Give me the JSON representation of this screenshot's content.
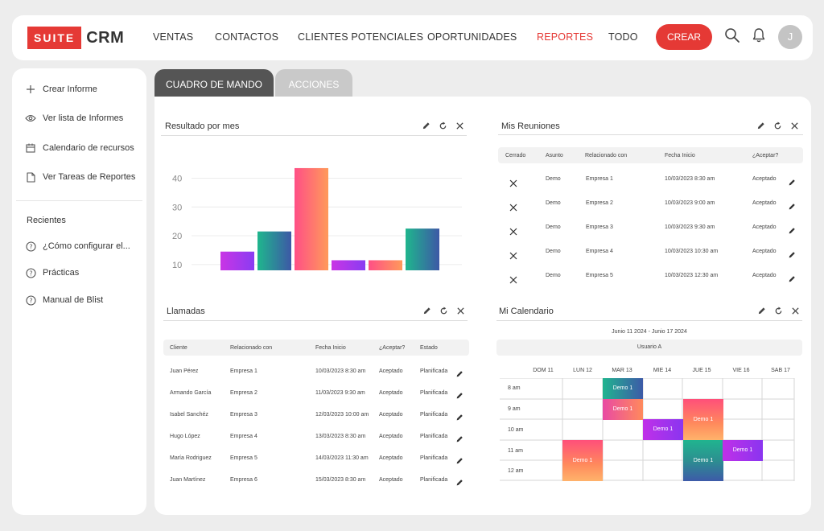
{
  "app": {
    "logo_suite": "SUITE",
    "logo_crm": "CRM"
  },
  "nav": {
    "items": [
      "VENTAS",
      "CONTACTOS",
      "CLIENTES POTENCIALES",
      "OPORTUNIDADES",
      "REPORTES",
      "TODO"
    ],
    "active": "REPORTES",
    "create_label": "CREAR",
    "avatar_initial": "J"
  },
  "sidebar": {
    "actions": [
      {
        "label": "Crear Informe",
        "icon": "plus-icon"
      },
      {
        "label": "Ver lista de Informes",
        "icon": "eye-icon"
      },
      {
        "label": "Calendario de recursos",
        "icon": "calendar-icon"
      },
      {
        "label": "Ver Tareas de Reportes",
        "icon": "document-icon"
      }
    ],
    "recent_heading": "Recientes",
    "recent": [
      {
        "label": "¿Cómo configurar el...",
        "icon": "help-icon"
      },
      {
        "label": "Prácticas",
        "icon": "help-icon"
      },
      {
        "label": "Manual de Blist",
        "icon": "help-icon"
      }
    ]
  },
  "tabs": {
    "active": "CUADRO DE MANDO",
    "inactive": "ACCIONES"
  },
  "panels": {
    "chart_title": "Resultado por mes",
    "meetings_title": "Mis Reuniones",
    "calls_title": "Llamadas",
    "calendar_title": "Mi Calendario"
  },
  "chart_data": {
    "type": "bar",
    "title": "Resultado por mes",
    "categories": [
      "",
      "",
      "",
      "",
      "",
      ""
    ],
    "values": [
      14.5,
      21.5,
      43.5,
      11.5,
      11.5,
      22.5
    ],
    "yticks": [
      10,
      20,
      30,
      40
    ],
    "ylim": [
      8,
      46
    ],
    "colors": [
      "purple",
      "green",
      "orange",
      "purple",
      "orange",
      "green"
    ],
    "grid": true
  },
  "meetings": {
    "headers": [
      "Cerrado",
      "Asunto",
      "Relacionado con",
      "Fecha Inicio",
      "¿Aceptar?"
    ],
    "rows": [
      [
        "Demo",
        "Empresa 1",
        "10/03/2023 8:30 am",
        "Aceptado"
      ],
      [
        "Demo",
        "Empresa 2",
        "10/03/2023 9:00 am",
        "Aceptado"
      ],
      [
        "Demo",
        "Empresa 3",
        "10/03/2023 9:30 am",
        "Aceptado"
      ],
      [
        "Demo",
        "Empresa 4",
        "10/03/2023 10:30 am",
        "Aceptado"
      ],
      [
        "Demo",
        "Empresa 5",
        "10/03/2023 12:30 am",
        "Aceptado"
      ]
    ]
  },
  "calls": {
    "headers": [
      "Cliente",
      "Relacionado con",
      "Fecha Inicio",
      "¿Aceptar?",
      "Estado"
    ],
    "rows": [
      [
        "Juan Pérez",
        "Empresa 1",
        "10/03/2023 8:30 am",
        "Aceptado",
        "Planificada"
      ],
      [
        "Armando García",
        "Empresa 2",
        "11/03/2023 9:30 am",
        "Aceptado",
        "Planificada"
      ],
      [
        "Isabel Sanchéz",
        "Empresa 3",
        "12/03/2023 10:00 am",
        "Aceptado",
        "Planificada"
      ],
      [
        "Hugo López",
        "Empresa 4",
        "13/03/2023 8:30 am",
        "Aceptado",
        "Planificada"
      ],
      [
        "María Rodriguez",
        "Empresa 5",
        "14/03/2023 11:30 am",
        "Aceptado",
        "Planificada"
      ],
      [
        "Juan Martínez",
        "Empresa 6",
        "15/03/2023 8:30 am",
        "Aceptado",
        "Planificada"
      ]
    ]
  },
  "calendar": {
    "range": "Junio 11 2024 - Junio 17 2024",
    "user": "Usuario A",
    "days": [
      "DOM 11",
      "LUN 12",
      "MAR 13",
      "MIE 14",
      "JUE 15",
      "VIE 16",
      "SAB 17"
    ],
    "hours": [
      "8 am",
      "9 am",
      "10 am",
      "11 am",
      "12 am"
    ],
    "events": [
      {
        "label": "Demo 1",
        "day": 2,
        "start": 0,
        "span": 1,
        "style": "green-h"
      },
      {
        "label": "Demo 1",
        "day": 2,
        "start": 1,
        "span": 1,
        "style": "orange-h"
      },
      {
        "label": "Demo 1",
        "day": 3,
        "start": 2,
        "span": 1,
        "style": "purple"
      },
      {
        "label": "Demo 1",
        "day": 4,
        "start": 1,
        "span": 2,
        "style": "orange"
      },
      {
        "label": "Demo 1",
        "day": 1,
        "start": 3,
        "span": 2,
        "style": "orange"
      },
      {
        "label": "Demo 1",
        "day": 4,
        "start": 3,
        "span": 2,
        "style": "green"
      },
      {
        "label": "Demo 1",
        "day": 5,
        "start": 3,
        "span": 1,
        "style": "purple"
      }
    ]
  }
}
